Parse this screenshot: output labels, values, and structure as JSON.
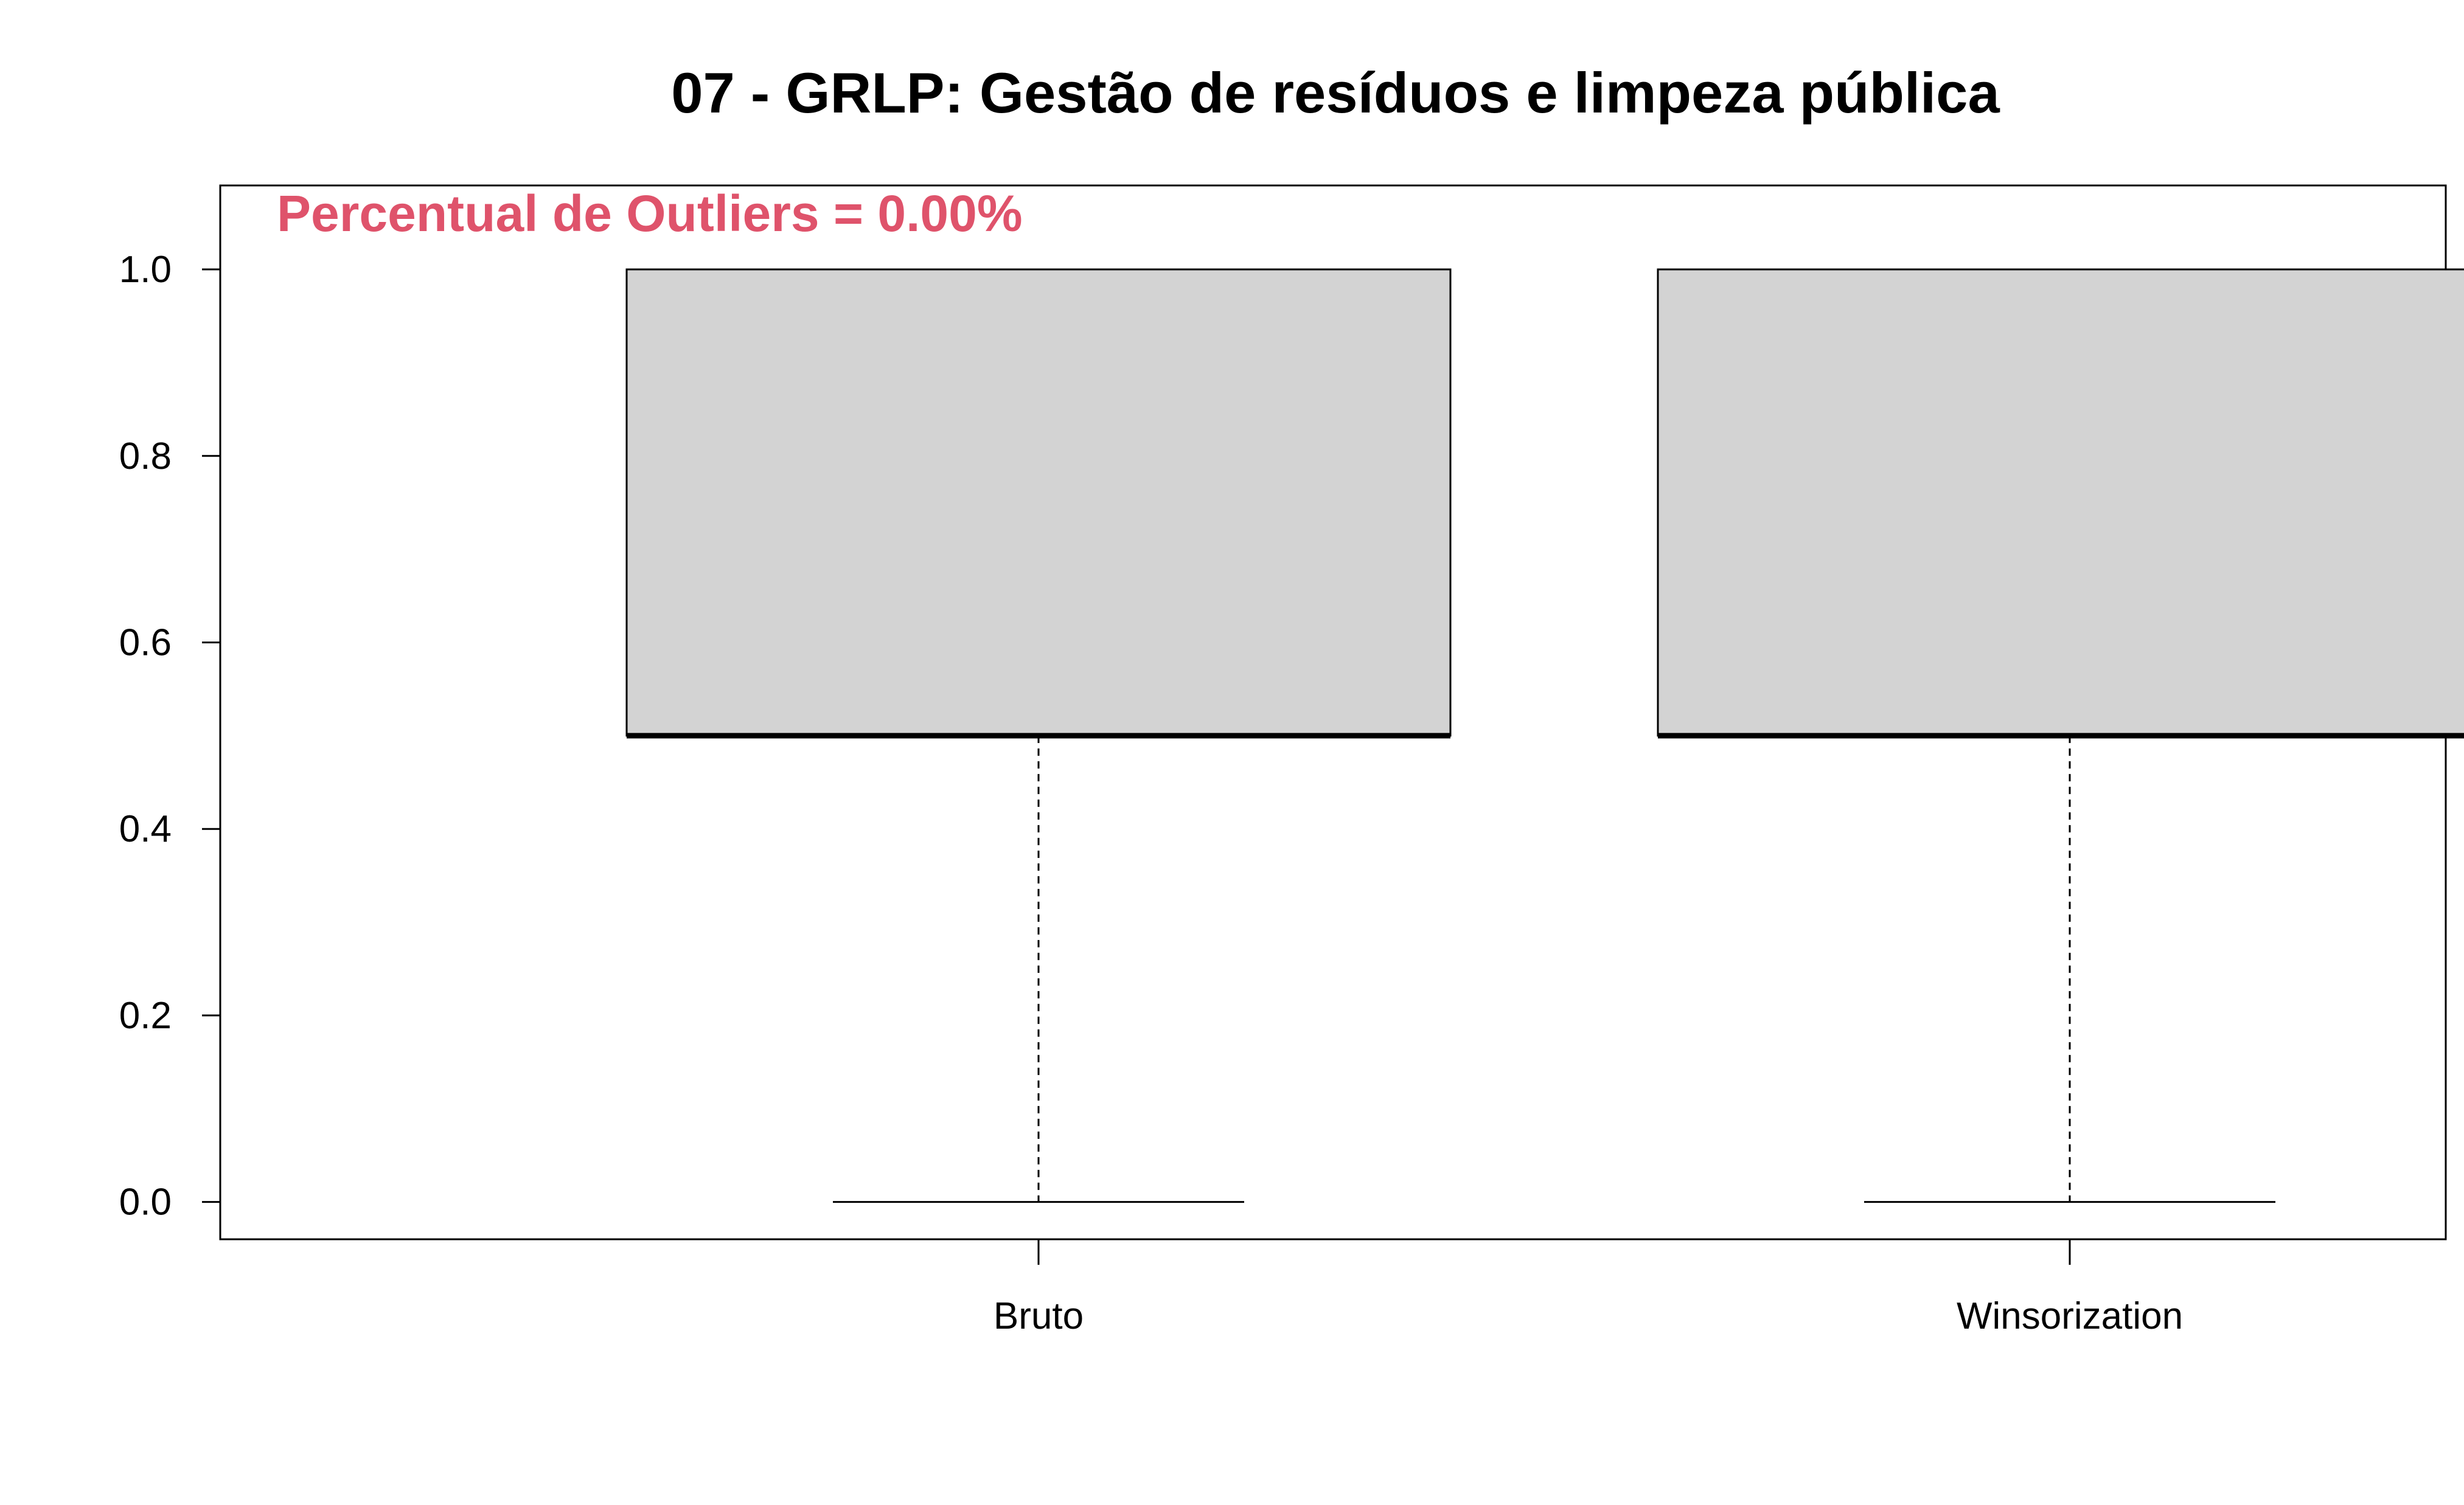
{
  "chart_data": {
    "type": "boxplot",
    "title": "07 - GRLP: Gestão de resíduos e limpeza pública",
    "annotation": {
      "text": "Percentual de Outliers = 0.00%",
      "color": "#DF536B",
      "placement": "top-left"
    },
    "xlabel": "",
    "ylabel": "",
    "ylim": [
      -0.04,
      1.09
    ],
    "yticks": [
      0.0,
      0.2,
      0.4,
      0.6,
      0.8,
      1.0
    ],
    "ytick_labels": [
      "0.0",
      "0.2",
      "0.4",
      "0.6",
      "0.8",
      "1.0"
    ],
    "categories": [
      "Bruto",
      "Winsorization"
    ],
    "boxes": [
      {
        "name": "Bruto",
        "whisker_low": 0.0,
        "q1": 0.5,
        "median": 0.5,
        "q3": 1.0,
        "whisker_high": 1.0
      },
      {
        "name": "Winsorization",
        "whisker_low": 0.0,
        "q1": 0.5,
        "median": 0.5,
        "q3": 1.0,
        "whisker_high": 1.0
      }
    ],
    "box_fill": "#D3D3D3",
    "grid": false,
    "legend": "none"
  }
}
